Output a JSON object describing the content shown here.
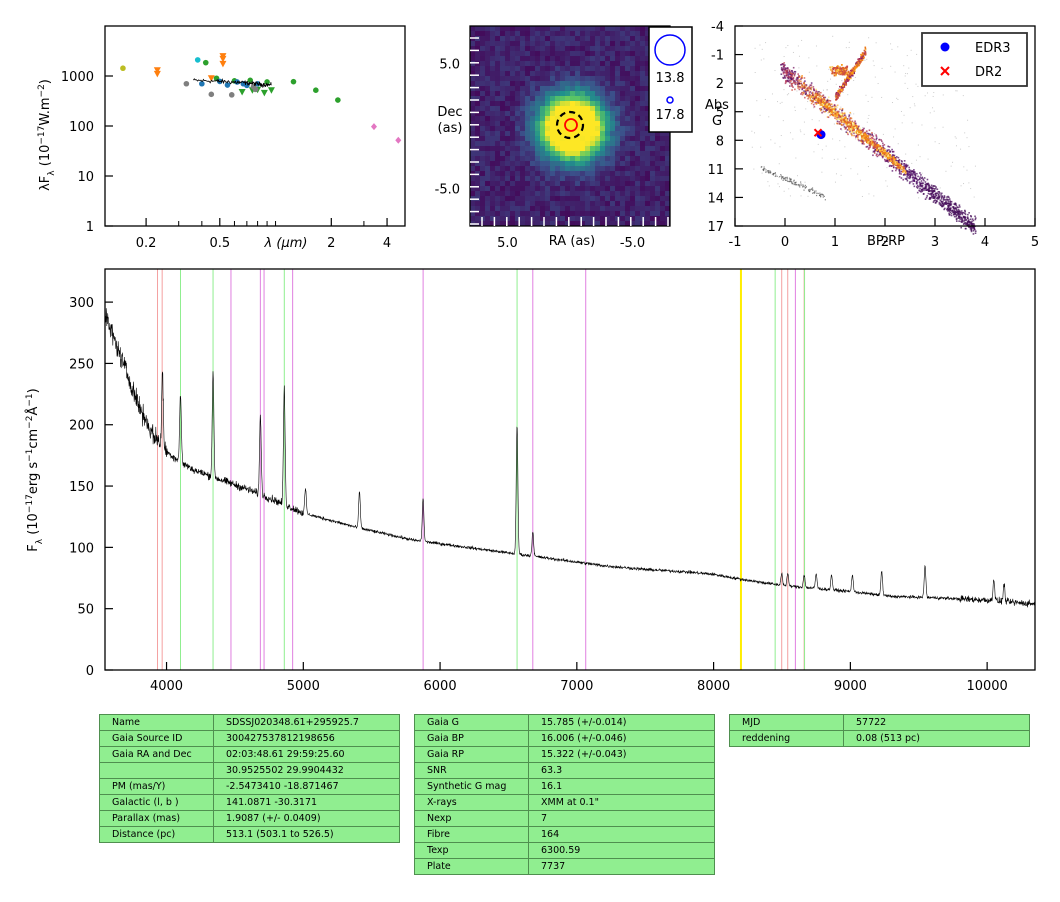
{
  "sed_panel": {
    "ylabel": "λF_λ (10^-17 W.m^-2)",
    "ylabel_parts": [
      "λF",
      "λ",
      " (10",
      "−17",
      "W.m",
      "−2",
      ")"
    ],
    "xlabel": "λ (μm)",
    "x_ticks": [
      "0.2",
      "0.5",
      "2",
      "4"
    ],
    "y_ticks": [
      "1",
      "10",
      "100",
      "1000"
    ],
    "scale": "log-log",
    "x_range_um": [
      0.12,
      5.0
    ],
    "y_range": [
      1,
      10000
    ]
  },
  "image_panel": {
    "xlabel": "RA (as)",
    "ylabel": "Dec (as)",
    "ylabel_lines": [
      "Dec",
      "(as)"
    ],
    "x_ticks": [
      "5.0",
      "-5.0"
    ],
    "y_ticks": [
      "5.0",
      "-5.0"
    ],
    "legend": {
      "big_mag": "13.8",
      "small_mag": "17.8"
    }
  },
  "hr_panel": {
    "xlabel": "BP-RP",
    "ylabel": "Abs G",
    "ylabel_lines": [
      "Abs",
      "G"
    ],
    "x_ticks": [
      "-1",
      "0",
      "1",
      "2",
      "3",
      "4",
      "5"
    ],
    "y_ticks": [
      "-4",
      "-1",
      "2",
      "5",
      "8",
      "11",
      "14",
      "17"
    ],
    "x_range": [
      -1,
      5
    ],
    "y_range": [
      -4,
      17
    ],
    "legend": [
      {
        "label": "EDR3",
        "marker": "circle",
        "color": "#0000ff"
      },
      {
        "label": "DR2",
        "marker": "x",
        "color": "#ff0000"
      }
    ],
    "star": {
      "bp_rp": 0.72,
      "abs_g": 7.4
    }
  },
  "spectrum_panel": {
    "ylabel": "F_λ (10^-17 erg s^-1 cm^-2 Å^-1)",
    "ylabel_parts": [
      "F",
      "λ",
      " (10",
      "−17",
      "erg s",
      "−1",
      "cm",
      "−2",
      "Å",
      "−1",
      ")"
    ],
    "x_ticks": [
      "4000",
      "5000",
      "6000",
      "7000",
      "8000",
      "9000",
      "10000"
    ],
    "y_ticks": [
      "0",
      "50",
      "100",
      "150",
      "200",
      "250",
      "300"
    ],
    "x_range": [
      3550,
      10350
    ],
    "y_range": [
      0,
      327
    ],
    "colors": {
      "red_lines": "#f4a0a0",
      "green_lines": "#90ee90",
      "violet_lines": "#e080e0",
      "yellow_line": "#ffee00",
      "spectrum": "#000000"
    }
  },
  "chart_data": [
    {
      "type": "scatter",
      "title": "",
      "xlabel": "λ (μm)",
      "ylabel": "λF_λ (10^-17 W.m^-2)",
      "scale": "log-log",
      "xlim": [
        0.12,
        5.0
      ],
      "ylim": [
        1,
        10000
      ],
      "series": [
        {
          "color": "#bcbd22",
          "marker": "circle",
          "points": [
            [
              0.15,
              1430
            ]
          ]
        },
        {
          "color": "#ff7f0e",
          "marker": "triangle-down",
          "points": [
            [
              0.23,
              1300
            ],
            [
              0.23,
              1100
            ],
            [
              0.52,
              2500
            ],
            [
              0.52,
              2200
            ],
            [
              0.52,
              1750
            ],
            [
              0.45,
              900
            ]
          ]
        },
        {
          "color": "#17becf",
          "marker": "circle",
          "points": [
            [
              0.38,
              2100
            ]
          ]
        },
        {
          "color": "#2ca02c",
          "marker": "circle",
          "points": [
            [
              0.42,
              1850
            ],
            [
              0.48,
              900
            ],
            [
              0.6,
              800
            ],
            [
              0.73,
              820
            ],
            [
              0.9,
              760
            ],
            [
              1.25,
              770
            ],
            [
              1.65,
              520
            ],
            [
              2.17,
              330
            ]
          ]
        },
        {
          "color": "#2ca02c",
          "marker": "triangle-down",
          "points": [
            [
              0.66,
              480
            ],
            [
              0.75,
              520
            ],
            [
              0.8,
              530
            ],
            [
              0.87,
              460
            ],
            [
              0.95,
              520
            ]
          ]
        },
        {
          "color": "#7f7f7f",
          "marker": "circle",
          "points": [
            [
              0.33,
              700
            ],
            [
              0.45,
              430
            ],
            [
              0.58,
              420
            ],
            [
              0.76,
              610
            ],
            [
              0.78,
              540
            ]
          ]
        },
        {
          "color": "#1f77b4",
          "marker": "circle",
          "points": [
            [
              0.4,
              700
            ],
            [
              0.5,
              780
            ],
            [
              0.55,
              660
            ],
            [
              0.62,
              760
            ],
            [
              0.67,
              700
            ],
            [
              0.7,
              650
            ],
            [
              0.8,
              700
            ]
          ]
        },
        {
          "color": "#e377c2",
          "marker": "diamond",
          "points": [
            [
              3.4,
              97
            ],
            [
              4.6,
              52
            ]
          ]
        }
      ]
    },
    {
      "type": "heatmap",
      "title": "",
      "xlabel": "RA (as)",
      "ylabel": "Dec (as)",
      "xlim": [
        8.0,
        -8.0
      ],
      "ylim": [
        -8.0,
        8.0
      ],
      "source_center": [
        0.0,
        0.0
      ],
      "circles": [
        {
          "style": "dashed",
          "color": "#000000",
          "center": [
            0.0,
            0.0
          ]
        },
        {
          "style": "solid",
          "color": "#ff0000",
          "center": [
            0.0,
            0.0
          ]
        }
      ]
    },
    {
      "type": "scatter",
      "title": "",
      "xlabel": "BP-RP",
      "ylabel": "Abs G",
      "xlim": [
        -1,
        5
      ],
      "ylim": [
        17,
        -4
      ],
      "series": [
        {
          "name": "EDR3",
          "color": "#0000ff",
          "points": [
            [
              0.72,
              7.4
            ]
          ]
        },
        {
          "name": "DR2",
          "color": "#ff0000",
          "points": [
            [
              0.66,
              7.2
            ]
          ]
        }
      ]
    },
    {
      "type": "line",
      "title": "",
      "xlabel": "",
      "ylabel": "F_λ (10^-17 erg s^-1 cm^-2 Å^-1)",
      "xlim": [
        3550,
        10350
      ],
      "ylim": [
        0,
        327
      ],
      "continuum": [
        [
          3550,
          290
        ],
        [
          3700,
          245
        ],
        [
          3800,
          215
        ],
        [
          3900,
          192
        ],
        [
          4000,
          178
        ],
        [
          4100,
          170
        ],
        [
          4200,
          163
        ],
        [
          4400,
          155
        ],
        [
          4600,
          147
        ],
        [
          4800,
          138
        ],
        [
          5000,
          128
        ],
        [
          5200,
          122
        ],
        [
          5400,
          116
        ],
        [
          5600,
          111
        ],
        [
          5800,
          106
        ],
        [
          6000,
          103
        ],
        [
          6200,
          100
        ],
        [
          6400,
          97
        ],
        [
          6600,
          94
        ],
        [
          6800,
          91
        ],
        [
          7000,
          88
        ],
        [
          7200,
          85
        ],
        [
          7500,
          82
        ],
        [
          7800,
          80
        ],
        [
          8000,
          78
        ],
        [
          8200,
          74
        ],
        [
          8500,
          69
        ],
        [
          8800,
          66
        ],
        [
          9000,
          64
        ],
        [
          9300,
          60
        ],
        [
          9600,
          59
        ],
        [
          9800,
          58
        ],
        [
          10000,
          57
        ],
        [
          10200,
          55
        ],
        [
          10350,
          54
        ]
      ],
      "emission_lines": [
        [
          3970,
          60
        ],
        [
          4102,
          55
        ],
        [
          4340,
          85
        ],
        [
          4686,
          65
        ],
        [
          4861,
          95
        ],
        [
          5016,
          20
        ],
        [
          5411,
          30
        ],
        [
          5876,
          35
        ],
        [
          6563,
          105
        ],
        [
          6678,
          20
        ],
        [
          8498,
          10
        ],
        [
          8542,
          10
        ],
        [
          8662,
          10
        ],
        [
          8750,
          12
        ],
        [
          8863,
          12
        ],
        [
          9015,
          14
        ],
        [
          9229,
          20
        ],
        [
          9546,
          26
        ],
        [
          10049,
          18
        ],
        [
          10124,
          14
        ]
      ],
      "marker_lines": {
        "red": [
          3934,
          3968,
          8498,
          8542,
          8662
        ],
        "green": [
          4102,
          4340,
          4861,
          6563,
          8450,
          8665
        ],
        "violet": [
          4471,
          4686,
          4713,
          4922,
          5876,
          6678,
          7065,
          8598
        ],
        "yellow": [
          8200
        ]
      }
    }
  ],
  "tables": {
    "left": [
      [
        "Name",
        "SDSSJ020348.61+295925.7"
      ],
      [
        "Gaia Source ID",
        "300427537812198656"
      ],
      [
        "Gaia RA and Dec",
        "02:03:48.61    29:59:25.60"
      ],
      [
        "",
        "30.9525502    29.9904432"
      ],
      [
        "PM (mas/Y)",
        "-2.5473410    -18.871467"
      ],
      [
        "Galactic (l, b )",
        "141.0871    -30.3171"
      ],
      [
        "Parallax (mas)",
        "1.9087 (+/- 0.0409)"
      ],
      [
        "Distance (pc)",
        "513.1 (503.1 to 526.5)"
      ]
    ],
    "middle": [
      [
        "Gaia G",
        "15.785 (+/-0.014)"
      ],
      [
        "Gaia BP",
        "16.006 (+/-0.046)"
      ],
      [
        "Gaia RP",
        "15.322 (+/-0.043)"
      ],
      [
        "SNR",
        "63.3"
      ],
      [
        "Synthetic G mag",
        "16.1"
      ],
      [
        "X-rays",
        "XMM at 0.1\""
      ],
      [
        "Nexp",
        "7"
      ],
      [
        "Fibre",
        "164"
      ],
      [
        "Texp",
        "6300.59"
      ],
      [
        "Plate",
        "7737"
      ]
    ],
    "right": [
      [
        "MJD",
        "57722"
      ],
      [
        "reddening",
        "0.08 (513 pc)"
      ]
    ]
  }
}
